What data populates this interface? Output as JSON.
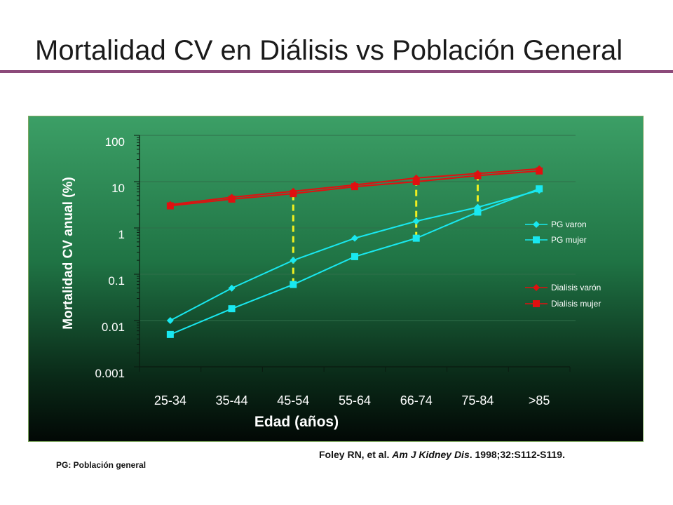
{
  "slide": {
    "title": "Mortalidad CV en Diálisis vs Población General"
  },
  "citation": {
    "authors": "Foley RN, et al. ",
    "journal": "Am J Kidney Dis",
    "details": ". 1998;32:S112-S119."
  },
  "footnote": "PG: Población general",
  "colors": {
    "dialysis": "#e01010",
    "general_population": "#19e8f0",
    "highlight": "#f0f020"
  },
  "chart_data": {
    "type": "line",
    "xlabel": "Edad (años)",
    "ylabel": "Mortalidad CV anual (%)",
    "yscale": "log",
    "ylim": [
      0.001,
      100
    ],
    "yticks": [
      "100",
      "10",
      "1",
      "0.1",
      "0.01",
      "0.001"
    ],
    "categories": [
      "25-34",
      "35-44",
      "45-54",
      "55-64",
      "66-74",
      "75-84",
      ">85"
    ],
    "series": [
      {
        "name": "PG varon",
        "marker": "diamond",
        "color": "#19e8f0",
        "values": [
          0.01,
          0.05,
          0.2,
          0.6,
          1.4,
          2.8,
          6.5
        ]
      },
      {
        "name": "PG mujer",
        "marker": "square",
        "color": "#19e8f0",
        "values": [
          0.005,
          0.018,
          0.06,
          0.24,
          0.6,
          2.2,
          7
        ]
      },
      {
        "name": "Dialisis varón",
        "marker": "diamond",
        "color": "#e01010",
        "values": [
          3.2,
          4.6,
          6.2,
          8.5,
          12,
          15,
          19
        ]
      },
      {
        "name": "Dialisis mujer",
        "marker": "square",
        "color": "#e01010",
        "values": [
          3.0,
          4.2,
          5.5,
          7.8,
          10,
          13.5,
          17
        ]
      }
    ],
    "highlight_gaps": [
      {
        "category": "45-54",
        "from": 0.06,
        "to": 5.5
      },
      {
        "category": "66-74",
        "from": 0.6,
        "to": 10
      },
      {
        "category": "75-84",
        "from": 2.2,
        "to": 13.5
      }
    ],
    "legend_position": "right"
  }
}
